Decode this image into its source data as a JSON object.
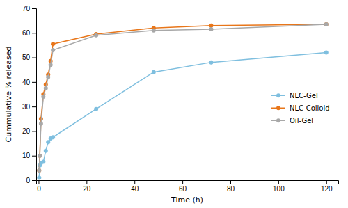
{
  "chart_data": {
    "type": "line",
    "xlabel": "Time (h)",
    "ylabel": "Cummulative % released",
    "x": [
      0.25,
      0.5,
      1,
      2,
      3,
      4,
      5,
      6,
      24,
      48,
      72,
      120
    ],
    "series": [
      {
        "name": "NLC-Gel",
        "color": "#7FBFDF",
        "marker": "circle",
        "values": [
          1.0,
          6.0,
          7.0,
          7.5,
          12.0,
          15.5,
          17.0,
          17.5,
          29.0,
          44.0,
          48.0,
          52.0
        ]
      },
      {
        "name": "NLC-Colloid",
        "color": "#E8761A",
        "marker": "circle",
        "values": [
          4.0,
          10.0,
          25.0,
          35.0,
          39.0,
          43.0,
          48.5,
          55.5,
          59.5,
          62.0,
          63.0,
          63.5
        ]
      },
      {
        "name": "Oil-Gel",
        "color": "#A8A8A8",
        "marker": "circle",
        "values": [
          4.0,
          10.0,
          23.0,
          34.0,
          37.5,
          42.0,
          47.0,
          53.0,
          59.0,
          61.0,
          61.5,
          63.5
        ]
      }
    ],
    "xlim": [
      -1,
      125
    ],
    "ylim": [
      0,
      70
    ],
    "xticks": [
      0,
      20,
      40,
      60,
      80,
      100,
      120
    ],
    "yticks": [
      0,
      10,
      20,
      30,
      40,
      50,
      60,
      70
    ],
    "legend": "right"
  }
}
